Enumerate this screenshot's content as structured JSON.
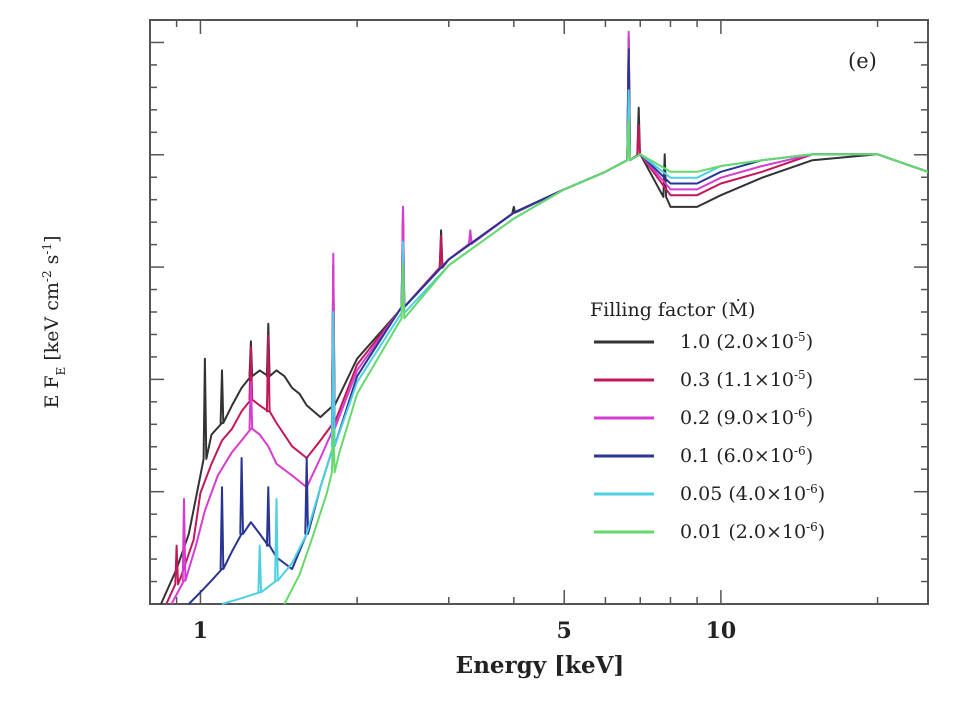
{
  "chart_data": {
    "type": "line",
    "panel_label": "(e)",
    "xlabel": "Energy [keV]",
    "ylabel": "E F",
    "ylabel_sub": "E",
    "ylabel_units": "[keV cm",
    "ylabel_units_exp1": "-2",
    "ylabel_units_mid": " s",
    "ylabel_units_exp2": "-1",
    "ylabel_units_end": "]",
    "x_scale": "log",
    "xlim": [
      0.8,
      25
    ],
    "ylim": [
      0,
      1
    ],
    "x_ticks": [
      {
        "value": 1,
        "label": "1"
      },
      {
        "value": 5,
        "label": "5"
      },
      {
        "value": 10,
        "label": "10"
      }
    ],
    "legend": {
      "title": "Filling factor (Ṁ)",
      "placement": "right"
    },
    "series": [
      {
        "name": "1.0",
        "mdot": "(2.0×10",
        "mdot_exp": "-5",
        "color": "#333333",
        "points": [
          [
            0.84,
            0.0
          ],
          [
            0.9,
            0.06
          ],
          [
            0.95,
            0.12
          ],
          [
            1.0,
            0.22
          ],
          [
            1.05,
            0.29
          ],
          [
            1.1,
            0.31
          ],
          [
            1.15,
            0.34
          ],
          [
            1.2,
            0.37
          ],
          [
            1.25,
            0.39
          ],
          [
            1.3,
            0.4
          ],
          [
            1.35,
            0.39
          ],
          [
            1.4,
            0.4
          ],
          [
            1.45,
            0.39
          ],
          [
            1.5,
            0.37
          ],
          [
            1.55,
            0.36
          ],
          [
            1.6,
            0.34
          ],
          [
            1.65,
            0.33
          ],
          [
            1.7,
            0.32
          ],
          [
            1.8,
            0.34
          ],
          [
            2.0,
            0.42
          ],
          [
            2.4,
            0.5
          ],
          [
            3.0,
            0.59
          ],
          [
            4.0,
            0.67
          ],
          [
            5.0,
            0.71
          ],
          [
            6.0,
            0.74
          ],
          [
            7.0,
            0.77
          ],
          [
            8.0,
            0.68
          ],
          [
            9.0,
            0.68
          ],
          [
            10.0,
            0.7
          ],
          [
            12.0,
            0.73
          ],
          [
            15.0,
            0.76
          ],
          [
            20.0,
            0.77
          ],
          [
            25.0,
            0.74
          ]
        ],
        "spikes": [
          [
            1.02,
            0.42
          ],
          [
            1.1,
            0.4
          ],
          [
            1.25,
            0.45
          ],
          [
            1.35,
            0.48
          ],
          [
            1.8,
            0.58
          ],
          [
            2.45,
            0.66
          ],
          [
            2.9,
            0.64
          ],
          [
            4.0,
            0.68
          ],
          [
            6.65,
            0.97
          ],
          [
            6.95,
            0.85
          ],
          [
            7.8,
            0.77
          ]
        ]
      },
      {
        "name": "0.3",
        "mdot": "(1.1×10",
        "mdot_exp": "-5",
        "color": "#c2185b",
        "points": [
          [
            0.86,
            0.0
          ],
          [
            0.92,
            0.05
          ],
          [
            0.97,
            0.11
          ],
          [
            1.0,
            0.19
          ],
          [
            1.05,
            0.24
          ],
          [
            1.1,
            0.28
          ],
          [
            1.15,
            0.3
          ],
          [
            1.2,
            0.33
          ],
          [
            1.25,
            0.35
          ],
          [
            1.3,
            0.34
          ],
          [
            1.35,
            0.33
          ],
          [
            1.4,
            0.31
          ],
          [
            1.5,
            0.27
          ],
          [
            1.6,
            0.25
          ],
          [
            1.7,
            0.28
          ],
          [
            1.8,
            0.31
          ],
          [
            2.0,
            0.41
          ],
          [
            2.4,
            0.5
          ],
          [
            3.0,
            0.59
          ],
          [
            4.0,
            0.67
          ],
          [
            5.0,
            0.71
          ],
          [
            6.0,
            0.74
          ],
          [
            7.0,
            0.77
          ],
          [
            8.0,
            0.7
          ],
          [
            9.0,
            0.7
          ],
          [
            10.0,
            0.72
          ],
          [
            12.0,
            0.74
          ],
          [
            15.0,
            0.77
          ],
          [
            20.0,
            0.77
          ],
          [
            25.0,
            0.74
          ]
        ],
        "spikes": [
          [
            0.9,
            0.1
          ],
          [
            1.25,
            0.44
          ],
          [
            1.35,
            0.46
          ],
          [
            1.8,
            0.55
          ],
          [
            2.45,
            0.68
          ],
          [
            2.9,
            0.63
          ],
          [
            6.65,
            0.96
          ],
          [
            6.95,
            0.82
          ]
        ]
      },
      {
        "name": "0.2",
        "mdot": "(9.0×10",
        "mdot_exp": "-6",
        "color": "#d63ccf",
        "points": [
          [
            0.88,
            0.0
          ],
          [
            0.93,
            0.04
          ],
          [
            0.98,
            0.1
          ],
          [
            1.02,
            0.16
          ],
          [
            1.08,
            0.22
          ],
          [
            1.15,
            0.26
          ],
          [
            1.2,
            0.28
          ],
          [
            1.25,
            0.3
          ],
          [
            1.3,
            0.29
          ],
          [
            1.35,
            0.27
          ],
          [
            1.4,
            0.24
          ],
          [
            1.5,
            0.22
          ],
          [
            1.6,
            0.2
          ],
          [
            1.7,
            0.25
          ],
          [
            1.8,
            0.3
          ],
          [
            2.0,
            0.4
          ],
          [
            2.4,
            0.5
          ],
          [
            3.0,
            0.59
          ],
          [
            4.0,
            0.67
          ],
          [
            5.0,
            0.71
          ],
          [
            6.0,
            0.74
          ],
          [
            7.0,
            0.77
          ],
          [
            8.0,
            0.71
          ],
          [
            9.0,
            0.71
          ],
          [
            10.0,
            0.73
          ],
          [
            12.0,
            0.75
          ],
          [
            15.0,
            0.77
          ],
          [
            20.0,
            0.77
          ],
          [
            25.0,
            0.74
          ]
        ],
        "spikes": [
          [
            0.93,
            0.18
          ],
          [
            1.25,
            0.38
          ],
          [
            1.8,
            0.6
          ],
          [
            2.45,
            0.68
          ],
          [
            3.3,
            0.64
          ],
          [
            6.65,
            0.98
          ]
        ]
      },
      {
        "name": "0.1",
        "mdot": "(6.0×10",
        "mdot_exp": "-6",
        "color": "#283593",
        "points": [
          [
            0.95,
            0.0
          ],
          [
            1.0,
            0.02
          ],
          [
            1.05,
            0.04
          ],
          [
            1.1,
            0.06
          ],
          [
            1.15,
            0.09
          ],
          [
            1.2,
            0.12
          ],
          [
            1.25,
            0.14
          ],
          [
            1.3,
            0.12
          ],
          [
            1.35,
            0.1
          ],
          [
            1.4,
            0.08
          ],
          [
            1.5,
            0.06
          ],
          [
            1.6,
            0.12
          ],
          [
            1.7,
            0.2
          ],
          [
            1.8,
            0.27
          ],
          [
            2.0,
            0.39
          ],
          [
            2.4,
            0.5
          ],
          [
            3.0,
            0.59
          ],
          [
            4.0,
            0.67
          ],
          [
            5.0,
            0.71
          ],
          [
            6.0,
            0.74
          ],
          [
            7.0,
            0.77
          ],
          [
            8.0,
            0.72
          ],
          [
            9.0,
            0.72
          ],
          [
            10.0,
            0.74
          ],
          [
            12.0,
            0.76
          ],
          [
            15.0,
            0.77
          ],
          [
            20.0,
            0.77
          ],
          [
            25.0,
            0.74
          ]
        ],
        "spikes": [
          [
            1.1,
            0.2
          ],
          [
            1.2,
            0.25
          ],
          [
            1.35,
            0.2
          ],
          [
            1.6,
            0.25
          ],
          [
            1.8,
            0.46
          ],
          [
            2.45,
            0.6
          ],
          [
            6.65,
            0.95
          ]
        ]
      },
      {
        "name": "0.05",
        "mdot": "(4.0×10",
        "mdot_exp": "-6",
        "color": "#4dd0e1",
        "points": [
          [
            1.1,
            0.0
          ],
          [
            1.2,
            0.01
          ],
          [
            1.3,
            0.02
          ],
          [
            1.4,
            0.04
          ],
          [
            1.5,
            0.07
          ],
          [
            1.6,
            0.12
          ],
          [
            1.7,
            0.2
          ],
          [
            1.8,
            0.27
          ],
          [
            2.0,
            0.38
          ],
          [
            2.4,
            0.49
          ],
          [
            3.0,
            0.58
          ],
          [
            4.0,
            0.66
          ],
          [
            5.0,
            0.71
          ],
          [
            6.0,
            0.74
          ],
          [
            7.0,
            0.77
          ],
          [
            8.0,
            0.73
          ],
          [
            9.0,
            0.73
          ],
          [
            10.0,
            0.75
          ],
          [
            12.0,
            0.76
          ],
          [
            15.0,
            0.77
          ],
          [
            20.0,
            0.77
          ],
          [
            25.0,
            0.74
          ]
        ],
        "spikes": [
          [
            1.3,
            0.1
          ],
          [
            1.4,
            0.18
          ],
          [
            1.8,
            0.5
          ],
          [
            2.45,
            0.62
          ],
          [
            6.65,
            0.88
          ]
        ]
      },
      {
        "name": "0.01",
        "mdot": "(2.0×10",
        "mdot_exp": "-6",
        "color": "#66d96b",
        "points": [
          [
            1.45,
            0.0
          ],
          [
            1.55,
            0.05
          ],
          [
            1.65,
            0.12
          ],
          [
            1.75,
            0.19
          ],
          [
            1.85,
            0.26
          ],
          [
            2.0,
            0.36
          ],
          [
            2.4,
            0.48
          ],
          [
            3.0,
            0.58
          ],
          [
            4.0,
            0.66
          ],
          [
            5.0,
            0.71
          ],
          [
            6.0,
            0.74
          ],
          [
            7.0,
            0.77
          ],
          [
            8.0,
            0.74
          ],
          [
            9.0,
            0.74
          ],
          [
            10.0,
            0.75
          ],
          [
            12.0,
            0.76
          ],
          [
            15.0,
            0.77
          ],
          [
            20.0,
            0.77
          ],
          [
            25.0,
            0.74
          ]
        ],
        "spikes": [
          [
            1.8,
            0.3
          ],
          [
            2.45,
            0.58
          ],
          [
            6.65,
            0.83
          ]
        ]
      }
    ]
  }
}
